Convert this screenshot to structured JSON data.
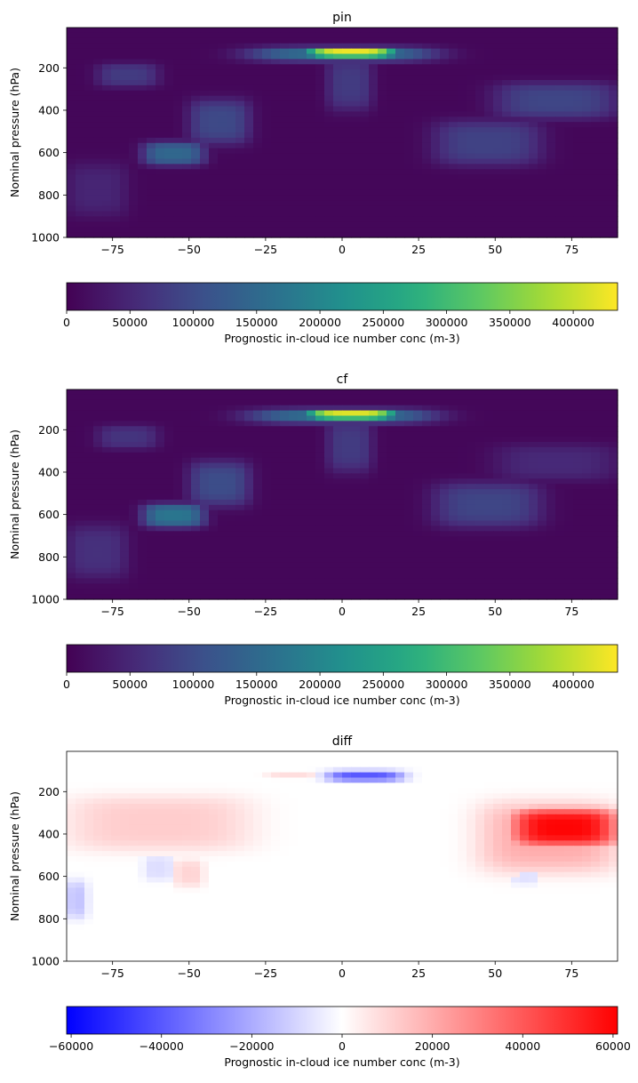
{
  "chart_data": [
    {
      "type": "heatmap",
      "title": "pin",
      "ylabel": "Nominal pressure (hPa)",
      "xlabel": "",
      "xlim": [
        -90,
        90
      ],
      "ylim": [
        1000,
        10
      ],
      "y_inverted": true,
      "xticks": [
        -75,
        -50,
        -25,
        0,
        25,
        50,
        75
      ],
      "yticks": [
        200,
        400,
        600,
        800,
        1000
      ],
      "colormap": "viridis",
      "colorbar": {
        "label": "Prognostic in-cloud ice number conc (m-3)",
        "range": [
          0,
          435000
        ],
        "ticks": [
          0,
          50000,
          100000,
          150000,
          200000,
          250000,
          300000,
          350000,
          400000
        ]
      },
      "features": [
        {
          "lat": [
            -12,
            18
          ],
          "pressure": [
            110,
            150
          ],
          "value": 430000
        },
        {
          "lat": [
            -30,
            30
          ],
          "pressure": [
            100,
            170
          ],
          "value": 150000
        },
        {
          "lat": [
            -65,
            -45
          ],
          "pressure": [
            550,
            660
          ],
          "value": 140000
        },
        {
          "lat": [
            -50,
            -30
          ],
          "pressure": [
            350,
            560
          ],
          "value": 90000
        },
        {
          "lat": [
            -80,
            -60
          ],
          "pressure": [
            180,
            290
          ],
          "value": 70000
        },
        {
          "lat": [
            30,
            65
          ],
          "pressure": [
            450,
            660
          ],
          "value": 80000
        },
        {
          "lat": [
            50,
            90
          ],
          "pressure": [
            270,
            440
          ],
          "value": 85000
        },
        {
          "lat": [
            -5,
            10
          ],
          "pressure": [
            150,
            400
          ],
          "value": 70000
        },
        {
          "lat": [
            -90,
            -70
          ],
          "pressure": [
            650,
            900
          ],
          "value": 40000
        }
      ]
    },
    {
      "type": "heatmap",
      "title": "cf",
      "ylabel": "Nominal pressure (hPa)",
      "xlabel": "",
      "xlim": [
        -90,
        90
      ],
      "ylim": [
        1000,
        10
      ],
      "y_inverted": true,
      "xticks": [
        -75,
        -50,
        -25,
        0,
        25,
        50,
        75
      ],
      "yticks": [
        200,
        400,
        600,
        800,
        1000
      ],
      "colormap": "viridis",
      "colorbar": {
        "label": "Prognostic in-cloud ice number conc (m-3)",
        "range": [
          0,
          435000
        ],
        "ticks": [
          0,
          50000,
          100000,
          150000,
          200000,
          250000,
          300000,
          350000,
          400000
        ]
      },
      "features": [
        {
          "lat": [
            -12,
            18
          ],
          "pressure": [
            110,
            150
          ],
          "value": 420000
        },
        {
          "lat": [
            -30,
            30
          ],
          "pressure": [
            100,
            170
          ],
          "value": 150000
        },
        {
          "lat": [
            -65,
            -45
          ],
          "pressure": [
            550,
            660
          ],
          "value": 165000
        },
        {
          "lat": [
            -50,
            -30
          ],
          "pressure": [
            350,
            560
          ],
          "value": 95000
        },
        {
          "lat": [
            -80,
            -60
          ],
          "pressure": [
            180,
            290
          ],
          "value": 60000
        },
        {
          "lat": [
            30,
            65
          ],
          "pressure": [
            450,
            660
          ],
          "value": 85000
        },
        {
          "lat": [
            50,
            90
          ],
          "pressure": [
            270,
            440
          ],
          "value": 45000
        },
        {
          "lat": [
            -5,
            10
          ],
          "pressure": [
            150,
            400
          ],
          "value": 70000
        },
        {
          "lat": [
            -90,
            -70
          ],
          "pressure": [
            650,
            900
          ],
          "value": 55000
        }
      ]
    },
    {
      "type": "heatmap",
      "title": "diff",
      "ylabel": "Nominal pressure (hPa)",
      "xlabel": "",
      "xlim": [
        -90,
        90
      ],
      "ylim": [
        1000,
        10
      ],
      "y_inverted": true,
      "xticks": [
        -75,
        -50,
        -25,
        0,
        25,
        50,
        75
      ],
      "yticks": [
        200,
        400,
        600,
        800,
        1000
      ],
      "colormap": "bwr",
      "colorbar": {
        "label": "Prognostic in-cloud ice number conc (m-3)",
        "range": [
          -61000,
          61000
        ],
        "ticks": [
          -60000,
          -40000,
          -20000,
          0,
          20000,
          40000,
          60000
        ]
      },
      "features": [
        {
          "lat": [
            55,
            90
          ],
          "pressure": [
            280,
            460
          ],
          "value": 60000
        },
        {
          "lat": [
            45,
            90
          ],
          "pressure": [
            250,
            580
          ],
          "value": 20000
        },
        {
          "lat": [
            -90,
            -30
          ],
          "pressure": [
            220,
            480
          ],
          "value": 12000
        },
        {
          "lat": [
            -55,
            -45
          ],
          "pressure": [
            520,
            650
          ],
          "value": 10000
        },
        {
          "lat": [
            -5,
            20
          ],
          "pressure": [
            100,
            150
          ],
          "value": -40000
        },
        {
          "lat": [
            -25,
            -8
          ],
          "pressure": [
            110,
            140
          ],
          "value": 8000
        },
        {
          "lat": [
            -90,
            -83
          ],
          "pressure": [
            620,
            800
          ],
          "value": -14000
        },
        {
          "lat": [
            -65,
            -55
          ],
          "pressure": [
            500,
            620
          ],
          "value": -8000
        },
        {
          "lat": [
            55,
            65
          ],
          "pressure": [
            560,
            640
          ],
          "value": -7000
        }
      ]
    }
  ]
}
